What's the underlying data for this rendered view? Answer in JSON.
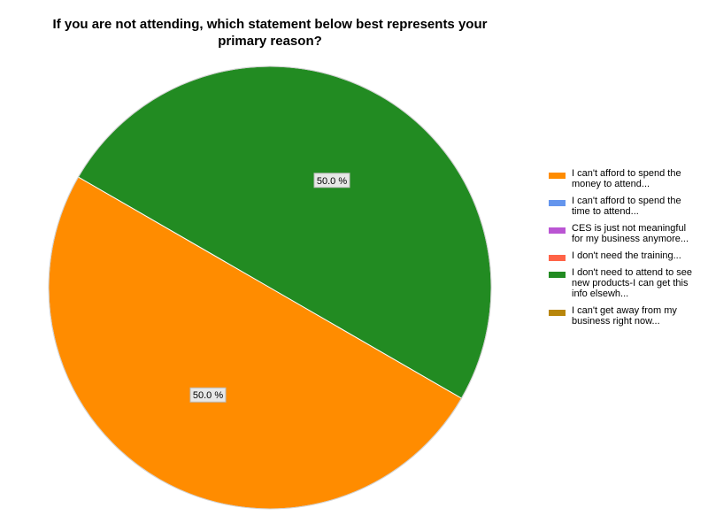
{
  "chart_data": {
    "type": "pie",
    "title": "If you are not attending, which statement below best represents your primary reason?",
    "categories": [
      "I can't afford to spend the money to attend...",
      "I can't afford to spend the time to attend...",
      "CES is just not meaningful for my business anymore...",
      "I don't need the training...",
      "I don't need to attend to see new products-I can get this info elsewh...",
      "I can't get away from my business right now..."
    ],
    "values": [
      50.0,
      0,
      0,
      0,
      50.0,
      0
    ],
    "value_labels": [
      "50.0 %",
      "",
      "",
      "",
      "50.0 %",
      ""
    ],
    "colors": [
      "#FF8C00",
      "#6495ED",
      "#BA55D3",
      "#FF6347",
      "#228B22",
      "#B8860B"
    ],
    "legend_position": "right"
  }
}
